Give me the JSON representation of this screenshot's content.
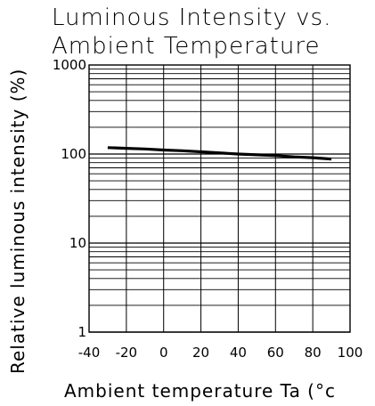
{
  "chart_data": {
    "type": "line",
    "title": "Luminous Intensity vs. Ambient Temperature",
    "title_lines": [
      "Luminous Intensity vs.",
      "Ambient Temperature"
    ],
    "xlabel": "Ambient temperature Ta (°c",
    "ylabel": "Relative luminous intensity (%)",
    "xlim": [
      -40,
      100
    ],
    "ylim": [
      1,
      1000
    ],
    "y_scale": "log",
    "grid": true,
    "x_ticks": [
      -40,
      -20,
      0,
      20,
      40,
      60,
      80,
      100
    ],
    "x_tick_labels": [
      "-40",
      "-20",
      "0",
      "20",
      "40",
      "60",
      "80",
      "100"
    ],
    "y_ticks": [
      1,
      10,
      100,
      1000
    ],
    "y_tick_labels": [
      "1",
      "10",
      "100",
      "1000"
    ],
    "series": [
      {
        "x": [
          -30,
          -20,
          -10,
          0,
          10,
          20,
          30,
          40,
          50,
          60,
          70,
          80,
          90
        ],
        "y": [
          118,
          116,
          114,
          111,
          109,
          106,
          103,
          100,
          98,
          96,
          93,
          91,
          88
        ]
      }
    ]
  },
  "colors": {
    "axis": "#000000",
    "grid": "#000000",
    "line": "#000000",
    "background": "#ffffff"
  }
}
